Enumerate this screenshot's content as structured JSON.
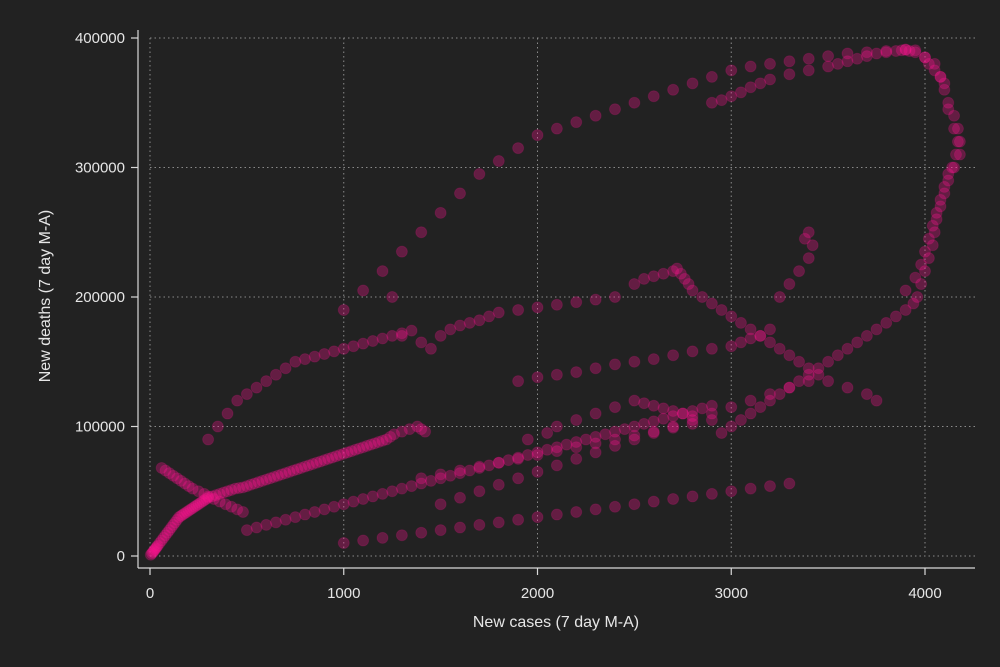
{
  "chart_data": {
    "type": "scatter",
    "title": "",
    "xlabel": "New cases (7 day M-A)",
    "ylabel": "New deaths (7 day M-A)",
    "xlim": [
      0,
      4200
    ],
    "ylim": [
      0,
      400000
    ],
    "xticks": [
      0,
      1000,
      2000,
      3000,
      4000
    ],
    "yticks": [
      0,
      100000,
      200000,
      300000,
      400000
    ],
    "xtick_labels": [
      "0",
      "1000",
      "2000",
      "3000",
      "4000"
    ],
    "ytick_labels": [
      "0",
      "100000",
      "200000",
      "300000",
      "400000"
    ],
    "grid": true,
    "legend": "none",
    "marker_color": "#ff1493",
    "marker_opacity": 0.3,
    "background": "#222222",
    "series": [
      {
        "values_note": "approximate selection of visible points",
        "x": [
          4,
          10,
          15,
          20,
          25,
          30,
          35,
          40,
          50,
          60,
          70,
          80,
          90,
          100,
          110,
          120,
          130,
          140,
          150,
          160,
          170,
          180,
          190,
          200,
          210,
          220,
          230,
          240,
          250,
          260,
          270,
          280,
          290,
          300,
          320,
          340,
          360,
          380,
          400,
          420,
          440,
          460,
          480,
          500,
          520,
          540,
          560,
          580,
          600,
          620,
          640,
          660,
          680,
          700,
          720,
          740,
          760,
          780,
          800,
          820,
          840,
          860,
          880,
          900,
          920,
          940,
          960,
          980,
          1000,
          1020,
          1040,
          1060,
          1080,
          1100,
          1120,
          1140,
          1160,
          1180,
          1200,
          1220,
          1240,
          1260,
          1300,
          1340,
          1380,
          1400,
          1420,
          60,
          80,
          100,
          120,
          140,
          160,
          180,
          200,
          220,
          250,
          280,
          300,
          330,
          360,
          390,
          420,
          450,
          480,
          300,
          350,
          400,
          450,
          500,
          550,
          600,
          650,
          700,
          750,
          800,
          850,
          900,
          950,
          1000,
          1050,
          1100,
          1150,
          1200,
          1250,
          1300,
          1350,
          500,
          550,
          600,
          650,
          700,
          750,
          800,
          850,
          900,
          950,
          1000,
          1050,
          1100,
          1150,
          1200,
          1250,
          1300,
          1350,
          1400,
          1450,
          1500,
          1550,
          1600,
          1650,
          1700,
          1750,
          1800,
          1850,
          1900,
          1950,
          2000,
          2050,
          2100,
          2150,
          2200,
          2250,
          2300,
          2350,
          2400,
          2450,
          2500,
          2550,
          2600,
          2650,
          2700,
          2750,
          2800,
          2850,
          2900,
          1000,
          1100,
          1200,
          1300,
          1400,
          1500,
          1600,
          1700,
          1800,
          1900,
          2000,
          2100,
          2200,
          2300,
          2400,
          2500,
          2600,
          2700,
          2800,
          2900,
          3000,
          3100,
          3200,
          3300,
          1500,
          1600,
          1700,
          1800,
          1900,
          2000,
          2100,
          2200,
          2300,
          2400,
          2500,
          2600,
          2700,
          2800,
          2900,
          3000,
          3100,
          3200,
          3300,
          3400,
          1400,
          1500,
          1600,
          1700,
          1800,
          1900,
          2000,
          2100,
          2200,
          2300,
          2400,
          2500,
          2600,
          2700,
          2800,
          2900,
          1250,
          1300,
          1400,
          1450,
          1500,
          1550,
          1600,
          1650,
          1700,
          1750,
          1800,
          1900,
          2000,
          2100,
          2200,
          2300,
          2400,
          2500,
          2550,
          2600,
          2650,
          2700,
          2720,
          2740,
          2760,
          2780,
          2800,
          2850,
          2900,
          2950,
          3000,
          3050,
          3100,
          3150,
          3200,
          3250,
          3300,
          3350,
          3400,
          3450,
          3500,
          3600,
          3700,
          3750,
          1900,
          2000,
          2100,
          2200,
          2300,
          2400,
          2500,
          2600,
          2700,
          2800,
          2900,
          3000,
          3050,
          3100,
          3150,
          3200,
          3250,
          3300,
          3350,
          3400,
          3420,
          3400,
          3380,
          1950,
          2050,
          2100,
          2200,
          2300,
          2400,
          2500,
          2550,
          2600,
          2650,
          2700,
          2750,
          2800,
          2900,
          2950,
          3000,
          3050,
          3100,
          3150,
          3200,
          3300,
          3400,
          3500,
          3550,
          3600,
          3650,
          3700,
          3750,
          3800,
          3850,
          3880,
          3900,
          3920,
          3950,
          4000,
          4020,
          4050,
          4080,
          4100,
          4120,
          4150,
          4170,
          4180,
          4160,
          4140,
          4120,
          4100,
          4080,
          4060,
          4050,
          4040,
          4020,
          4000,
          3980,
          3960,
          3940,
          3900,
          3850,
          3800,
          3750,
          3700,
          3650,
          3600,
          3550,
          3500,
          3450,
          3400,
          3350,
          3300,
          3250,
          3200,
          3150,
          3100,
          3050,
          3000,
          2950,
          1000,
          1100,
          1200,
          1300,
          1400,
          1500,
          1600,
          1700,
          1800,
          1900,
          2000,
          2100,
          2200,
          2300,
          2400,
          2500,
          2600,
          2700,
          2800,
          2900,
          3000,
          3100,
          3200,
          3300,
          3400,
          3500,
          3600,
          3700,
          3800,
          3900,
          3950,
          4000,
          4050,
          4080,
          4100,
          4120,
          4150,
          4170,
          4180,
          4150,
          4120,
          4100,
          4080,
          4060,
          4040,
          4020,
          4000,
          3980,
          3950,
          3900
        ],
        "y": [
          1000,
          2000,
          3000,
          4000,
          5000,
          6000,
          7000,
          8000,
          10000,
          12000,
          14000,
          16000,
          18000,
          20000,
          22000,
          24000,
          26000,
          28000,
          30000,
          31000,
          32000,
          33000,
          34000,
          35000,
          36000,
          37000,
          38000,
          39000,
          40000,
          41000,
          42000,
          43000,
          44000,
          45000,
          46000,
          47000,
          48000,
          49000,
          50000,
          51000,
          52000,
          52500,
          53000,
          54000,
          55000,
          56000,
          57000,
          58000,
          59000,
          60000,
          61000,
          62000,
          63000,
          64000,
          65000,
          66000,
          67000,
          68000,
          69000,
          70000,
          71000,
          72000,
          73000,
          74000,
          75000,
          76000,
          77000,
          78000,
          79000,
          80000,
          81000,
          82000,
          83000,
          84000,
          85000,
          86000,
          87000,
          88000,
          89000,
          90000,
          92000,
          94000,
          96000,
          98000,
          100000,
          98000,
          96000,
          68000,
          66000,
          64000,
          62000,
          60000,
          58000,
          56000,
          54000,
          52000,
          50000,
          48000,
          46000,
          44000,
          42000,
          40000,
          38000,
          36000,
          34000,
          90000,
          100000,
          110000,
          120000,
          125000,
          130000,
          135000,
          140000,
          145000,
          150000,
          152000,
          154000,
          156000,
          158000,
          160000,
          162000,
          164000,
          166000,
          168000,
          170000,
          172000,
          174000,
          20000,
          22000,
          24000,
          26000,
          28000,
          30000,
          32000,
          34000,
          36000,
          38000,
          40000,
          42000,
          44000,
          46000,
          48000,
          50000,
          52000,
          54000,
          56000,
          58000,
          60000,
          62000,
          64000,
          66000,
          68000,
          70000,
          72000,
          74000,
          76000,
          78000,
          80000,
          82000,
          84000,
          86000,
          88000,
          90000,
          92000,
          94000,
          96000,
          98000,
          100000,
          102000,
          104000,
          106000,
          108000,
          110000,
          112000,
          114000,
          116000,
          10000,
          12000,
          14000,
          16000,
          18000,
          20000,
          22000,
          24000,
          26000,
          28000,
          30000,
          32000,
          34000,
          36000,
          38000,
          40000,
          42000,
          44000,
          46000,
          48000,
          50000,
          52000,
          54000,
          56000,
          40000,
          45000,
          50000,
          55000,
          60000,
          65000,
          70000,
          75000,
          80000,
          85000,
          90000,
          95000,
          100000,
          105000,
          110000,
          115000,
          120000,
          125000,
          130000,
          135000,
          60000,
          63000,
          66000,
          69000,
          72000,
          75000,
          78000,
          81000,
          84000,
          87000,
          90000,
          93000,
          96000,
          99000,
          102000,
          105000,
          200000,
          170000,
          165000,
          160000,
          170000,
          175000,
          178000,
          180000,
          182000,
          185000,
          188000,
          190000,
          192000,
          194000,
          196000,
          198000,
          200000,
          210000,
          214000,
          216000,
          218000,
          220000,
          222000,
          218000,
          214000,
          210000,
          205000,
          200000,
          195000,
          190000,
          185000,
          180000,
          175000,
          170000,
          165000,
          160000,
          155000,
          150000,
          145000,
          140000,
          135000,
          130000,
          125000,
          120000,
          135000,
          138000,
          140000,
          142000,
          145000,
          148000,
          150000,
          152000,
          155000,
          158000,
          160000,
          162000,
          165000,
          168000,
          170000,
          175000,
          200000,
          210000,
          220000,
          230000,
          240000,
          250000,
          245000,
          90000,
          95000,
          100000,
          105000,
          110000,
          115000,
          120000,
          118000,
          116000,
          114000,
          112000,
          110000,
          108000,
          350000,
          352000,
          355000,
          358000,
          362000,
          365000,
          368000,
          372000,
          375000,
          378000,
          380000,
          382000,
          384000,
          386000,
          388000,
          389000,
          390000,
          390500,
          391000,
          390000,
          389000,
          385000,
          380000,
          375000,
          370000,
          365000,
          350000,
          340000,
          330000,
          320000,
          310000,
          300000,
          290000,
          280000,
          270000,
          260000,
          250000,
          240000,
          230000,
          220000,
          210000,
          200000,
          195000,
          190000,
          185000,
          180000,
          175000,
          170000,
          165000,
          160000,
          155000,
          150000,
          145000,
          140000,
          135000,
          130000,
          125000,
          120000,
          115000,
          110000,
          105000,
          100000,
          95000,
          190000,
          205000,
          220000,
          235000,
          250000,
          265000,
          280000,
          295000,
          305000,
          315000,
          325000,
          330000,
          335000,
          340000,
          345000,
          350000,
          355000,
          360000,
          365000,
          370000,
          375000,
          378000,
          380000,
          382000,
          384000,
          386000,
          388000,
          389000,
          390000,
          391000,
          390500,
          385000,
          380000,
          370000,
          360000,
          345000,
          330000,
          320000,
          310000,
          300000,
          295000,
          285000,
          275000,
          265000,
          255000,
          245000,
          235000,
          225000,
          215000,
          205000
        ]
      }
    ]
  }
}
